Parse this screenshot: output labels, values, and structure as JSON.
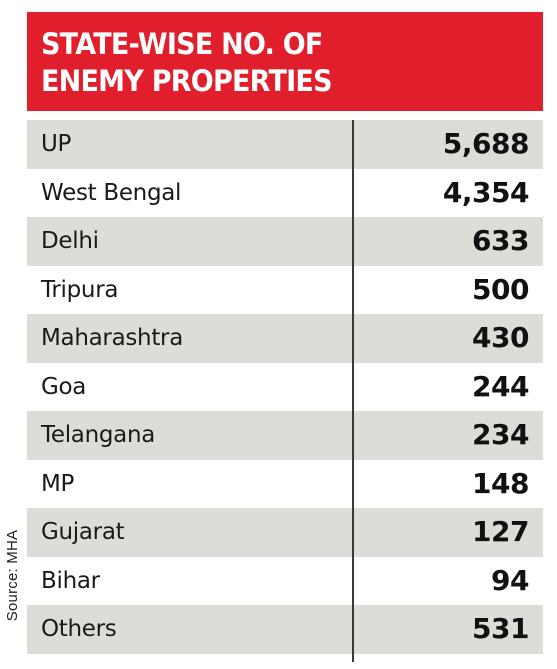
{
  "chart_data": {
    "type": "table",
    "title": "STATE-WISE NO. OF ENEMY PROPERTIES",
    "title_lines": [
      "STATE-WISE NO. OF",
      "ENEMY PROPERTIES"
    ],
    "source": "Source: MHA",
    "header_color": "#e11e2b",
    "shade_color": "#ddddd8",
    "rows": [
      {
        "state": "UP",
        "value": "5,688"
      },
      {
        "state": "West Bengal",
        "value": "4,354"
      },
      {
        "state": "Delhi",
        "value": "633"
      },
      {
        "state": "Tripura",
        "value": "500"
      },
      {
        "state": "Maharashtra",
        "value": "430"
      },
      {
        "state": "Goa",
        "value": "244"
      },
      {
        "state": "Telangana",
        "value": "234"
      },
      {
        "state": "MP",
        "value": "148"
      },
      {
        "state": "Gujarat",
        "value": "127"
      },
      {
        "state": "Bihar",
        "value": "94"
      },
      {
        "state": "Others",
        "value": "531"
      }
    ]
  }
}
